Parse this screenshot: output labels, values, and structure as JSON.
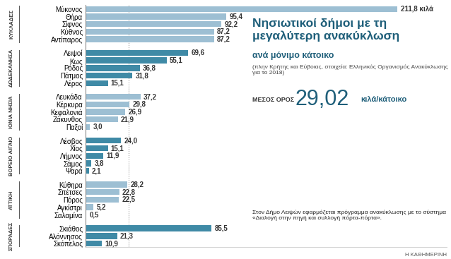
{
  "chart_data": {
    "type": "bar",
    "orientation": "horizontal",
    "title": "Νησιωτικοί δήμοι με τη μεγαλύτερη ανακύκλωση",
    "subtitle": "ανά μόνιμο κάτοικο",
    "note": "(πλην Κρήτης και Εύβοιας, στοιχεία: Ελληνικός Οργανισμός Ανακύκλωσης για το 2018)",
    "mean": {
      "title": "ΜΕΣΟΣ ΟΡΟΣ",
      "value": 29.02,
      "label": "29,02",
      "unit": "κιλά/κάτοικο"
    },
    "caption": "Στον Δήμο Λειψών εφαρμόζεται πρόγραμμα ανακύκλωσης με το σύστημα «Διαλογή στην πηγή και συλλογή πόρτα-πόρτα».",
    "source": "Η ΚΑΘΗΜΕΡΙΝΗ",
    "xlim": [
      0,
      245
    ],
    "tick_labels": "y",
    "data_labels": true,
    "grid": false,
    "groups": [
      {
        "name": "ΚΥΚΛΑΔΕΣ",
        "color": "#9dbfd3",
        "categories": [
          "Μύκονος",
          "Θήρα",
          "Σίφνος",
          "Κύθνος",
          "Αντίπαρος"
        ],
        "values": [
          211.8,
          95.4,
          92.2,
          87.2,
          87.2
        ],
        "value_labels": [
          "211,8 κιλά",
          "95,4",
          "92,2",
          "87,2",
          "87,2"
        ]
      },
      {
        "name": "ΔΩΔΕΚΑΝΗΣΑ",
        "color": "#3f8aa6",
        "categories": [
          "Λειψοί",
          "Κως",
          "Ρόδος",
          "Πάτμος",
          "Λέρος"
        ],
        "values": [
          69.6,
          55.1,
          36.8,
          31.8,
          15.1
        ],
        "value_labels": [
          "69,6",
          "55,1",
          "36,8",
          "31,8",
          "15,1"
        ]
      },
      {
        "name": "ΙΟΝΙΑ ΝΗΣΙΑ",
        "color": "#9dbfd3",
        "categories": [
          "Λευκάδα",
          "Κέρκυρα",
          "Κεφαλονιά",
          "Ζάκυνθος",
          "Παξοί"
        ],
        "values": [
          37.2,
          29.8,
          26.9,
          21.9,
          3.0
        ],
        "value_labels": [
          "37,2",
          "29,8",
          "26,9",
          "21,9",
          "3,0"
        ]
      },
      {
        "name": "ΒΟΡΕΙΟ ΑΙΓΑΙΟ",
        "color": "#3f8aa6",
        "categories": [
          "Λέσβος",
          "Χίος",
          "Λήμνος",
          "Σάμος",
          "Ψαρά"
        ],
        "values": [
          24.0,
          15.1,
          11.9,
          3.8,
          2.1
        ],
        "value_labels": [
          "24,0",
          "15,1",
          "11,9",
          "3,8",
          "2,1"
        ]
      },
      {
        "name": "ΑΤΤΙΚΗ",
        "color": "#9dbfd3",
        "categories": [
          "Κύθηρα",
          "Σπέτσες",
          "Πόρος",
          "Αγκίστρι",
          "Σαλαμίνα"
        ],
        "values": [
          28.2,
          22.8,
          22.5,
          5.2,
          0.5
        ],
        "value_labels": [
          "28,2",
          "22,8",
          "22,5",
          "5,2",
          "0,5"
        ]
      },
      {
        "name": "ΣΠΟΡΑΔΕΣ",
        "color": "#3f8aa6",
        "categories": [
          "Σκιάθος",
          "Αλόννησος",
          "Σκόπελος"
        ],
        "values": [
          85.5,
          21.3,
          10.9
        ],
        "value_labels": [
          "85,5",
          "21,3",
          "10,9"
        ]
      }
    ]
  }
}
